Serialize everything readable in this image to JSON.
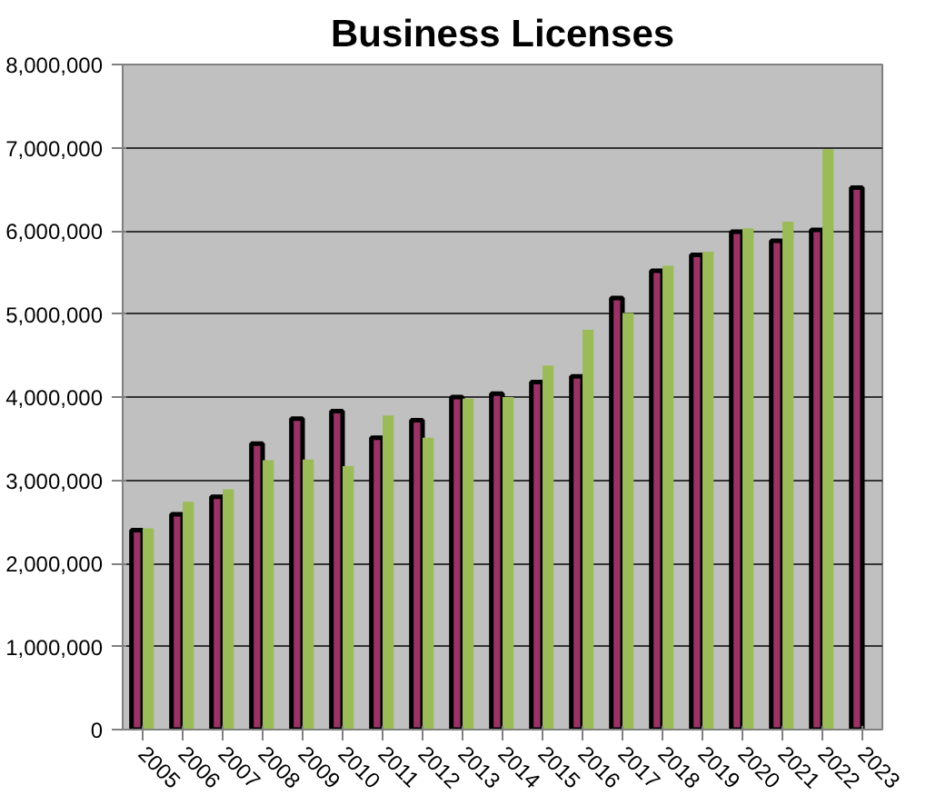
{
  "chart_data": {
    "type": "bar",
    "title": "Business Licenses",
    "categories": [
      "2005",
      "2006",
      "2007",
      "2008",
      "2009",
      "2010",
      "2011",
      "2012",
      "2013",
      "2014",
      "2015",
      "2016",
      "2017",
      "2018",
      "2019",
      "2020",
      "2021",
      "2022",
      "2023"
    ],
    "series": [
      {
        "color": "#993366",
        "values": [
          2400000,
          2590000,
          2800000,
          3440000,
          3740000,
          3830000,
          3510000,
          3720000,
          4000000,
          4040000,
          4180000,
          4250000,
          5190000,
          5520000,
          5710000,
          5990000,
          5880000,
          6010000,
          6520000
        ]
      },
      {
        "color": "#9bbb59",
        "values": [
          2420000,
          2740000,
          2890000,
          3240000,
          3250000,
          3170000,
          3780000,
          3510000,
          3980000,
          4000000,
          4380000,
          4810000,
          5010000,
          5580000,
          5750000,
          6030000,
          6110000,
          6980000,
          null
        ]
      }
    ],
    "ylim": [
      0,
      8000000
    ],
    "yticks": [
      {
        "value": 0,
        "label": "0"
      },
      {
        "value": 1000000,
        "label": "1,000,000"
      },
      {
        "value": 2000000,
        "label": "2,000,000"
      },
      {
        "value": 3000000,
        "label": "3,000,000"
      },
      {
        "value": 4000000,
        "label": "4,000,000"
      },
      {
        "value": 5000000,
        "label": "5,000,000"
      },
      {
        "value": 6000000,
        "label": "6,000,000"
      },
      {
        "value": 7000000,
        "label": "7,000,000"
      },
      {
        "value": 8000000,
        "label": "8,000,000"
      }
    ],
    "grid": "y"
  }
}
